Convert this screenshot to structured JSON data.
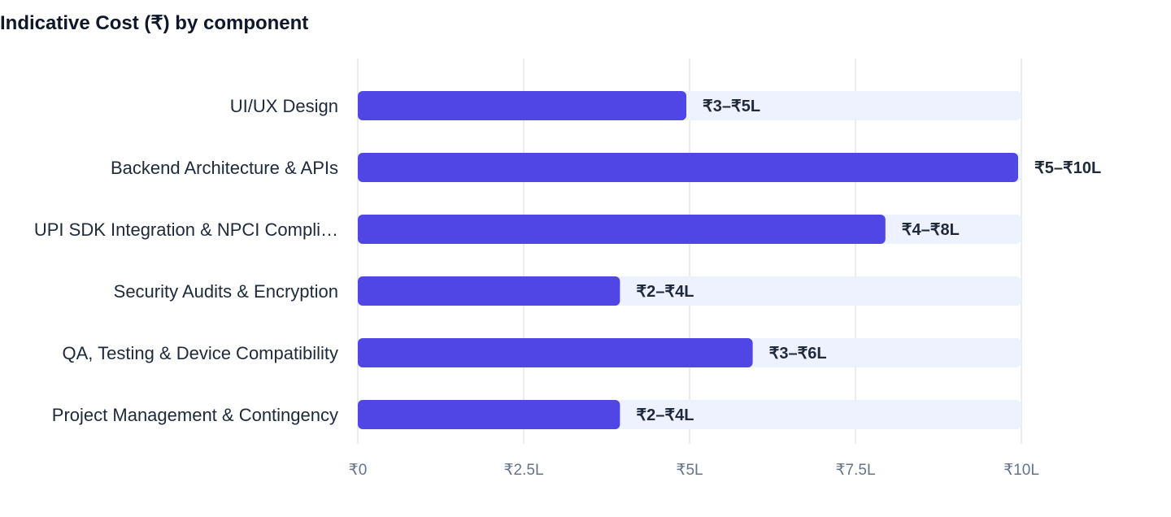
{
  "chart_data": {
    "type": "bar",
    "orientation": "horizontal",
    "title": "Indicative Cost (₹) by component",
    "categories": [
      "UI/UX Design",
      "Backend Architecture & APIs",
      "UPI SDK Integration & NPCI Compli…",
      "Security Audits & Encryption",
      "QA, Testing & Device Compatibility",
      "Project Management & Contingency"
    ],
    "values": [
      5,
      10,
      8,
      4,
      6,
      4
    ],
    "value_labels": [
      "₹3–₹5L",
      "₹5–₹10L",
      "₹4–₹8L",
      "₹2–₹4L",
      "₹3–₹6L",
      "₹2–₹4L"
    ],
    "xlim": [
      0,
      10
    ],
    "xticks": [
      0,
      2.5,
      5,
      7.5,
      10
    ],
    "xtick_labels": [
      "₹0",
      "₹2.5L",
      "₹5L",
      "₹7.5L",
      "₹10L"
    ],
    "grid": true,
    "colors": {
      "bar": "#4f46e5",
      "track": "#eef2ff",
      "grid": "#e2e8f0"
    }
  }
}
